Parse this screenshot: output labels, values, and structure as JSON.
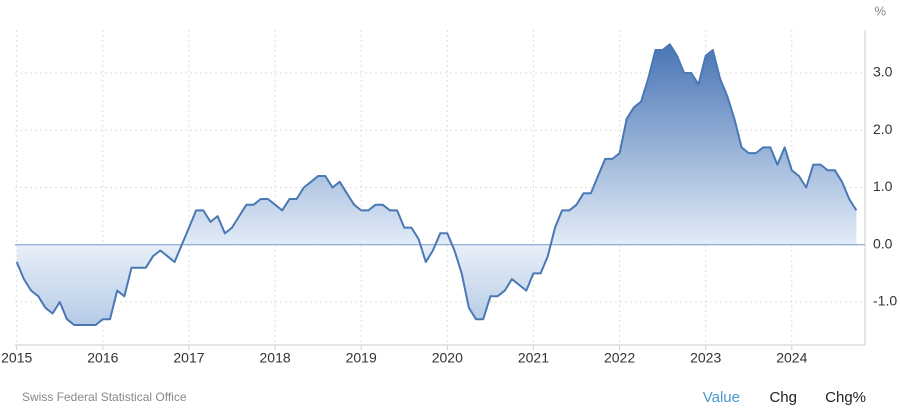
{
  "chart_data": {
    "type": "area",
    "y_unit": "%",
    "source": "Swiss Federal Statistical Office",
    "controls": [
      "Value",
      "Chg",
      "Chg%"
    ],
    "color": "#4a78b4",
    "x": [
      2015,
      2015.083,
      2015.167,
      2015.25,
      2015.333,
      2015.417,
      2015.5,
      2015.583,
      2015.667,
      2015.75,
      2015.833,
      2015.917,
      2016,
      2016.083,
      2016.167,
      2016.25,
      2016.333,
      2016.417,
      2016.5,
      2016.583,
      2016.667,
      2016.75,
      2016.833,
      2016.917,
      2017,
      2017.083,
      2017.167,
      2017.25,
      2017.333,
      2017.417,
      2017.5,
      2017.583,
      2017.667,
      2017.75,
      2017.833,
      2017.917,
      2018,
      2018.083,
      2018.167,
      2018.25,
      2018.333,
      2018.417,
      2018.5,
      2018.583,
      2018.667,
      2018.75,
      2018.833,
      2018.917,
      2019,
      2019.083,
      2019.167,
      2019.25,
      2019.333,
      2019.417,
      2019.5,
      2019.583,
      2019.667,
      2019.75,
      2019.833,
      2019.917,
      2020,
      2020.083,
      2020.167,
      2020.25,
      2020.333,
      2020.417,
      2020.5,
      2020.583,
      2020.667,
      2020.75,
      2020.833,
      2020.917,
      2021,
      2021.083,
      2021.167,
      2021.25,
      2021.333,
      2021.417,
      2021.5,
      2021.583,
      2021.667,
      2021.75,
      2021.833,
      2021.917,
      2022,
      2022.083,
      2022.167,
      2022.25,
      2022.333,
      2022.417,
      2022.5,
      2022.583,
      2022.667,
      2022.75,
      2022.833,
      2022.917,
      2023,
      2023.083,
      2023.167,
      2023.25,
      2023.333,
      2023.417,
      2023.5,
      2023.583,
      2023.667,
      2023.75,
      2023.833,
      2023.917,
      2024,
      2024.083,
      2024.167,
      2024.25,
      2024.333,
      2024.417,
      2024.5,
      2024.583,
      2024.667,
      2024.75
    ],
    "values": [
      -0.3,
      -0.6,
      -0.8,
      -0.9,
      -1.1,
      -1.2,
      -1.0,
      -1.3,
      -1.4,
      -1.4,
      -1.4,
      -1.4,
      -1.3,
      -1.3,
      -0.8,
      -0.9,
      -0.4,
      -0.4,
      -0.4,
      -0.2,
      -0.1,
      -0.2,
      -0.3,
      0.0,
      0.3,
      0.6,
      0.6,
      0.4,
      0.5,
      0.2,
      0.3,
      0.5,
      0.7,
      0.7,
      0.8,
      0.8,
      0.7,
      0.6,
      0.8,
      0.8,
      1.0,
      1.1,
      1.2,
      1.2,
      1.0,
      1.1,
      0.9,
      0.7,
      0.6,
      0.6,
      0.7,
      0.7,
      0.6,
      0.6,
      0.3,
      0.3,
      0.1,
      -0.3,
      -0.1,
      0.2,
      0.2,
      -0.1,
      -0.5,
      -1.1,
      -1.3,
      -1.3,
      -0.9,
      -0.9,
      -0.8,
      -0.6,
      -0.7,
      -0.8,
      -0.5,
      -0.5,
      -0.2,
      0.3,
      0.6,
      0.6,
      0.7,
      0.9,
      0.9,
      1.2,
      1.5,
      1.5,
      1.6,
      2.2,
      2.4,
      2.5,
      2.9,
      3.4,
      3.4,
      3.5,
      3.3,
      3.0,
      3.0,
      2.8,
      3.3,
      3.4,
      2.9,
      2.6,
      2.2,
      1.7,
      1.6,
      1.6,
      1.7,
      1.7,
      1.4,
      1.7,
      1.3,
      1.2,
      1.0,
      1.4,
      1.4,
      1.3,
      1.3,
      1.1,
      0.8,
      0.6
    ],
    "xlim": [
      2014.98,
      2024.85
    ],
    "xticks": [
      2015,
      2016,
      2017,
      2018,
      2019,
      2020,
      2021,
      2022,
      2023,
      2024
    ],
    "ylim": [
      -1.75,
      3.75
    ],
    "yticks": [
      {
        "value": 3,
        "label": "3.0"
      },
      {
        "value": 2,
        "label": "2.0"
      },
      {
        "value": 1,
        "label": "1.0"
      },
      {
        "value": 0,
        "label": "0.0"
      },
      {
        "value": -1,
        "label": "-1.0"
      }
    ],
    "grid": true
  }
}
